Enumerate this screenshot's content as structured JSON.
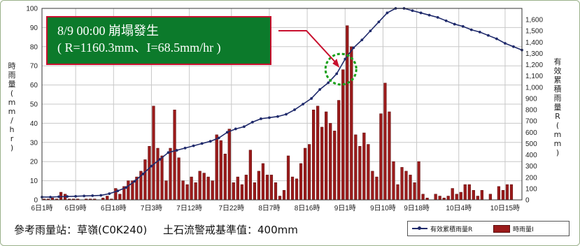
{
  "chart_data": {
    "type": "bar",
    "title": "",
    "ylabel": "時雨量(mm/hr)",
    "y2label": "有效累積雨量R(mm)",
    "ylim": [
      0,
      100
    ],
    "y2lim": [
      0,
      1700
    ],
    "yticks": [
      0,
      10,
      20,
      30,
      40,
      50,
      60,
      70,
      80,
      90,
      100
    ],
    "y2ticks": [
      0,
      100,
      200,
      300,
      400,
      500,
      600,
      700,
      800,
      900,
      1000,
      1100,
      1200,
      1300,
      1400,
      1500,
      1600
    ],
    "xlim": [
      0,
      114
    ],
    "xticks": [
      {
        "x": 0,
        "label": "6日1時"
      },
      {
        "x": 8,
        "label": "6日9時"
      },
      {
        "x": 17,
        "label": "6日18時"
      },
      {
        "x": 26,
        "label": "7日3時"
      },
      {
        "x": 35,
        "label": "7日12時"
      },
      {
        "x": 45,
        "label": "7日22時"
      },
      {
        "x": 54,
        "label": "8日7時"
      },
      {
        "x": 63,
        "label": "8日16時"
      },
      {
        "x": 72,
        "label": "9日1時"
      },
      {
        "x": 81,
        "label": "9日10時"
      },
      {
        "x": 89,
        "label": "9日18時"
      },
      {
        "x": 99,
        "label": "10日4時"
      },
      {
        "x": 110,
        "label": "10日15時"
      }
    ],
    "series": [
      {
        "name": "時雨量I",
        "kind": "bar",
        "axis": "left",
        "x": [
          0,
          1,
          2,
          3,
          4,
          5,
          6,
          7,
          8,
          9,
          10,
          11,
          12,
          13,
          14,
          15,
          16,
          17,
          18,
          19,
          20,
          21,
          22,
          23,
          24,
          25,
          26,
          27,
          28,
          29,
          30,
          31,
          32,
          33,
          34,
          35,
          36,
          37,
          38,
          39,
          40,
          41,
          42,
          43,
          44,
          45,
          46,
          47,
          48,
          49,
          50,
          51,
          52,
          53,
          54,
          55,
          56,
          57,
          58,
          59,
          60,
          61,
          62,
          63,
          64,
          65,
          66,
          67,
          68,
          69,
          70,
          71,
          72,
          73,
          74,
          75,
          76,
          77,
          78,
          79,
          80,
          81,
          82,
          83,
          84,
          85,
          86,
          87,
          88,
          89,
          90,
          91,
          92,
          93,
          94,
          95,
          96,
          97,
          98,
          99,
          100,
          101,
          102,
          103,
          104,
          105,
          106,
          107,
          108,
          109,
          110,
          111,
          112,
          113
        ],
        "values": [
          0.5,
          0.5,
          1,
          0.5,
          4,
          3,
          0.5,
          0.5,
          0.5,
          0,
          0.5,
          0.5,
          0.5,
          0,
          1,
          2,
          0.5,
          6,
          3,
          7,
          10,
          10,
          12,
          15,
          21,
          28,
          49,
          27,
          23,
          10,
          27,
          47,
          22,
          10,
          8,
          12,
          9,
          15,
          14,
          12,
          10,
          34,
          31,
          24,
          37,
          9,
          12,
          8,
          13,
          26,
          9,
          15,
          19,
          13,
          13,
          9,
          2,
          5,
          23,
          12,
          11,
          19,
          27,
          29,
          47,
          49,
          38,
          46,
          40,
          36,
          52,
          68,
          91,
          80,
          34,
          28,
          35,
          29,
          15,
          12,
          45,
          61,
          46,
          20,
          8,
          17,
          15,
          13,
          9,
          20,
          3,
          1,
          0,
          3,
          2,
          1,
          2,
          6,
          3,
          4,
          8,
          8,
          5,
          2,
          5,
          0,
          3,
          0,
          7,
          5,
          8,
          8,
          0,
          0
        ]
      },
      {
        "name": "有效累積雨量R",
        "kind": "line",
        "axis": "right",
        "x": [
          0,
          2,
          4,
          6,
          8,
          10,
          12,
          14,
          16,
          18,
          20,
          22,
          24,
          26,
          28,
          30,
          32,
          34,
          36,
          38,
          40,
          42,
          44,
          46,
          48,
          50,
          52,
          54,
          56,
          58,
          60,
          62,
          64,
          66,
          68,
          70,
          72,
          74,
          76,
          78,
          80,
          82,
          84,
          86,
          88,
          90,
          92,
          94,
          96,
          98,
          100,
          102,
          104,
          106,
          108,
          110,
          112,
          114
        ],
        "values": [
          25,
          25,
          28,
          30,
          32,
          35,
          37,
          40,
          55,
          80,
          110,
          165,
          230,
          300,
          360,
          420,
          440,
          460,
          480,
          500,
          520,
          550,
          600,
          630,
          650,
          690,
          720,
          730,
          740,
          760,
          800,
          850,
          900,
          980,
          1040,
          1120,
          1250,
          1350,
          1420,
          1500,
          1580,
          1660,
          1700,
          1700,
          1680,
          1660,
          1640,
          1620,
          1590,
          1560,
          1540,
          1510,
          1490,
          1460,
          1430,
          1390,
          1360,
          1330
        ]
      }
    ],
    "annotation": {
      "line1": "8/9 00:00  崩塌發生",
      "line2": "( R=1160.3mm、I=68.5mm/hr )",
      "target_x": 71,
      "target_r": 1160
    },
    "footer": {
      "station": "參考雨量站：草嶺(C0K240)",
      "threshold": "土石流警戒基準值：400mm"
    },
    "colors": {
      "bar": "#9b1b1b",
      "bar_edge": "#5a0d0d",
      "line": "#1f2a6b",
      "grid": "#c8c8c8",
      "annotation_bg": "#0c7a2b",
      "annotation_border": "#c8102e",
      "marker_circle": "#1aa01a"
    }
  }
}
